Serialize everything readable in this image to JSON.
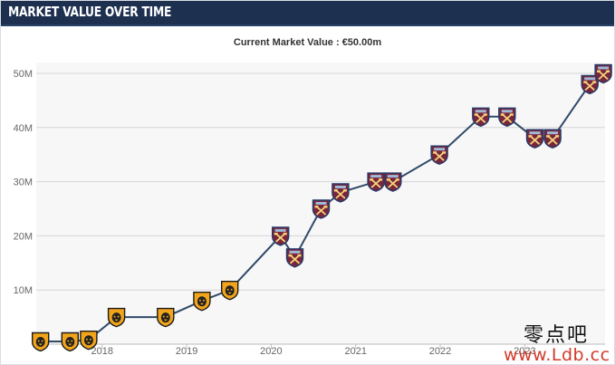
{
  "header": {
    "title": "MARKET VALUE OVER TIME"
  },
  "chart_data": {
    "type": "line",
    "title": "Current Market Value : €50.00m",
    "xlabel": "",
    "ylabel": "",
    "ylim": [
      0,
      52
    ],
    "xlim": [
      2017.22,
      2023.95
    ],
    "y_ticks": [
      {
        "value": 10,
        "label": "10M"
      },
      {
        "value": 20,
        "label": "20M"
      },
      {
        "value": 30,
        "label": "30M"
      },
      {
        "value": 40,
        "label": "40M"
      },
      {
        "value": 50,
        "label": "50M"
      }
    ],
    "x_ticks": [
      {
        "value": 2018,
        "label": "2018"
      },
      {
        "value": 2019,
        "label": "2019"
      },
      {
        "value": 2020,
        "label": "2020"
      },
      {
        "value": 2021,
        "label": "2021"
      },
      {
        "value": 2022,
        "label": "2022"
      },
      {
        "value": 2023,
        "label": "2023"
      }
    ],
    "grid": "horizontal",
    "line_color": "#2f4a68",
    "series": [
      {
        "x": [
          2017.27,
          2017.62,
          2017.84,
          2018.17,
          2018.75,
          2019.18,
          2019.51,
          2020.11,
          2020.28,
          2020.59,
          2020.82,
          2021.24,
          2021.44,
          2021.99,
          2022.48,
          2022.79,
          2023.12,
          2023.33,
          2023.77,
          2023.93
        ],
        "values": [
          0.5,
          0.5,
          0.8,
          5,
          5,
          8,
          10,
          20,
          16,
          25,
          28,
          30,
          30,
          35,
          42,
          42,
          38,
          38,
          48,
          50
        ],
        "club": [
          "hull",
          "hull",
          "hull",
          "hull",
          "hull",
          "hull",
          "hull",
          "westham",
          "westham",
          "westham",
          "westham",
          "westham",
          "westham",
          "westham",
          "westham",
          "westham",
          "westham",
          "westham",
          "westham",
          "westham"
        ]
      }
    ]
  },
  "crests": {
    "hull": {
      "icon": "hull-city-crest-icon",
      "fill": "#f2a51a",
      "stroke": "#1b1b1b",
      "emblem": "#222222"
    },
    "westham": {
      "icon": "west-ham-crest-icon",
      "fill": "#7a263a",
      "stroke": "#243a6b",
      "emblem": "#f3d37a"
    }
  },
  "watermark": {
    "chinese": "零点吧",
    "url": "www.Ldb.cc"
  }
}
